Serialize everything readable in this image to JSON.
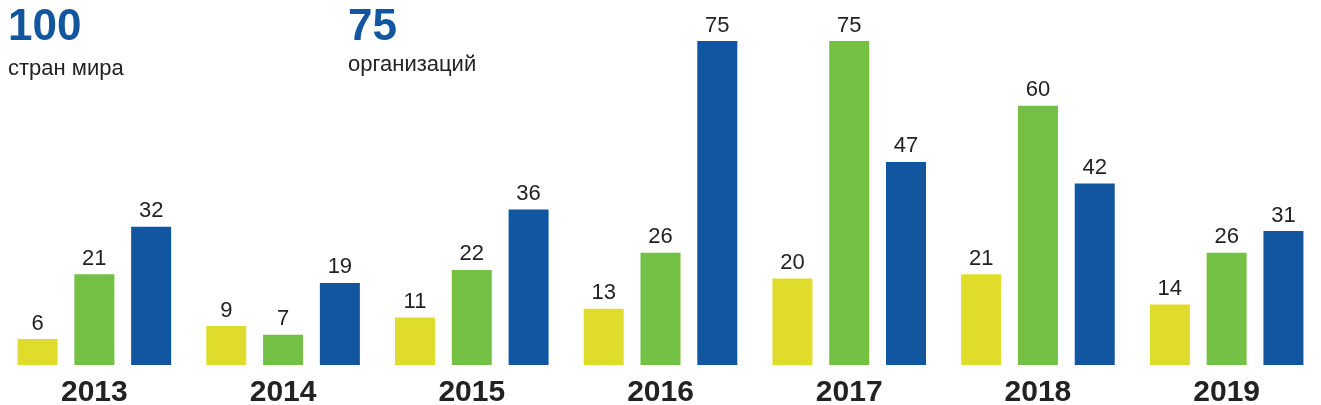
{
  "chart_data": {
    "type": "bar",
    "categories": [
      "2013",
      "2014",
      "2015",
      "2016",
      "2017",
      "2018",
      "2019"
    ],
    "series": [
      {
        "color": "#e0dc2c",
        "values": [
          6,
          9,
          11,
          13,
          20,
          21,
          14
        ]
      },
      {
        "color": "#74c044",
        "values": [
          21,
          7,
          22,
          26,
          75,
          60,
          26
        ]
      },
      {
        "color": "#12569f",
        "values": [
          32,
          19,
          36,
          75,
          47,
          42,
          31
        ]
      }
    ],
    "data_labels": true,
    "annotations": [
      "100",
      "стран мира",
      "75",
      "организаций"
    ]
  }
}
